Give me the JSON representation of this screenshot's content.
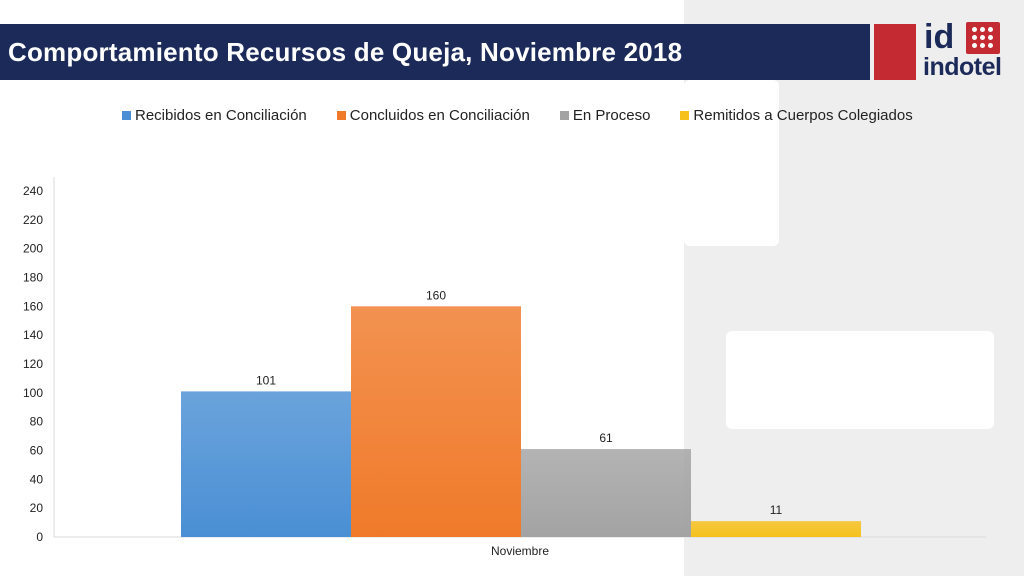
{
  "header": {
    "title": "Comportamiento Recursos de Queja, Noviembre 2018"
  },
  "logo": {
    "mark": "id",
    "name": "indotel",
    "brand_colors": {
      "navy": "#1b2a58",
      "red": "#c42a32"
    }
  },
  "chart_data": {
    "type": "bar",
    "categories": [
      "Noviembre"
    ],
    "series": [
      {
        "name": "Recibidos en Conciliación",
        "values": [
          101
        ],
        "color": "#4a8fd4"
      },
      {
        "name": "Concluidos en Conciliación",
        "values": [
          160
        ],
        "color": "#f07a2a"
      },
      {
        "name": "En Proceso",
        "values": [
          61
        ],
        "color": "#a3a3a3"
      },
      {
        "name": "Remitidos a Cuerpos Colegiados",
        "values": [
          11
        ],
        "color": "#f6c11b"
      }
    ],
    "ylim": [
      0,
      240
    ],
    "yticks": [
      "0",
      "20",
      "40",
      "60",
      "80",
      "100",
      "120",
      "140",
      "160",
      "180",
      "200",
      "220",
      "240"
    ],
    "data_labels": [
      "101",
      "160",
      "61",
      "11"
    ],
    "legend_position": "top",
    "grid": false
  }
}
